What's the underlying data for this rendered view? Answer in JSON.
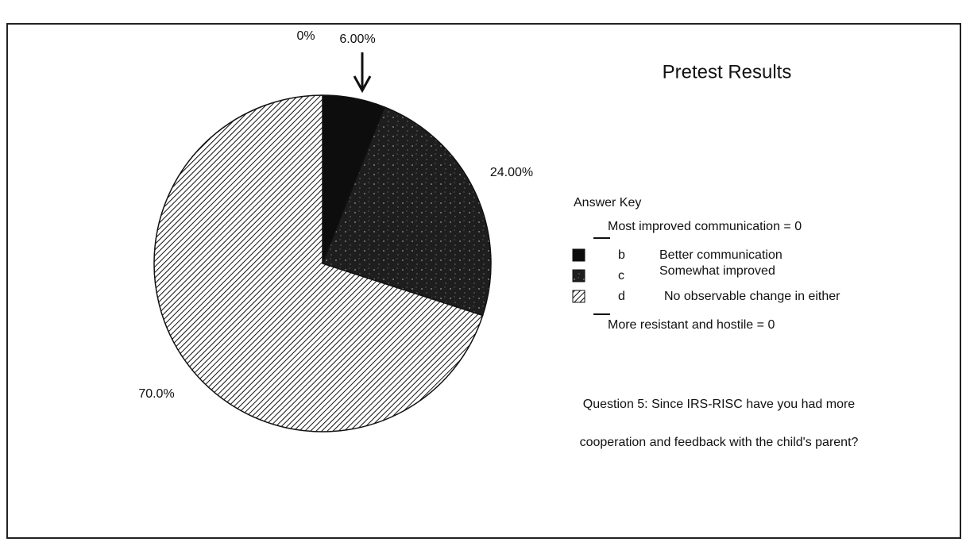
{
  "chart_data": {
    "type": "pie",
    "title": "Pretest Results",
    "legend_title": "Answer Key",
    "categories": [
      "Most improved communication = 0",
      "Better communication",
      "Somewhat improved",
      "No observable change in either",
      "More resistant and hostile = 0"
    ],
    "letters": [
      null,
      "b",
      "c",
      "d",
      null
    ],
    "values": [
      0,
      6,
      24,
      70,
      0
    ],
    "value_labels": [
      "0%",
      "6.00%",
      "24.00%",
      "70.0%",
      null
    ],
    "colors": [
      "#000000",
      "#0d0d0d",
      "#262626",
      "#ffffff",
      "#000000"
    ],
    "hatched": [
      false,
      false,
      false,
      true,
      false
    ],
    "question": [
      "Question 5: Since IRS-RISC have you had more",
      "cooperation and feedback with the child's parent?"
    ]
  }
}
